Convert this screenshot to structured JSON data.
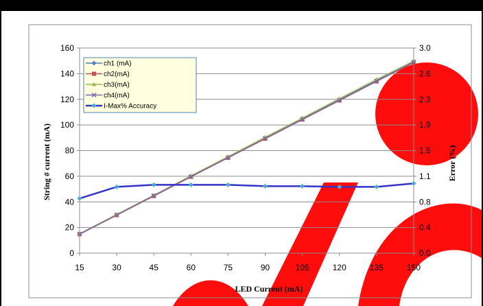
{
  "chart_data": {
    "type": "line",
    "xlabel": "LED Current (mA)",
    "ylabel": "String # current  (mA)",
    "y2label": "Error (%)",
    "x": [
      15,
      30,
      45,
      60,
      75,
      90,
      105,
      120,
      135,
      150
    ],
    "ylim": [
      0,
      160
    ],
    "yticks": [
      0,
      20,
      40,
      60,
      80,
      100,
      120,
      140,
      160
    ],
    "y2ticks": [
      "0.0",
      "0.4",
      "0.8",
      "1.1",
      "1.5",
      "1.9",
      "2.3",
      "2.6",
      "3.0"
    ],
    "y2lim": [
      0,
      3.0
    ],
    "grid": "horizontal",
    "legend_position": "top-left",
    "series": [
      {
        "name": "ch1 (mA)",
        "axis": "left",
        "color": "#4F81BD",
        "marker": "diamond",
        "values": [
          15,
          30,
          45,
          60,
          75,
          90,
          105,
          120,
          135,
          149
        ]
      },
      {
        "name": "ch2(mA)",
        "axis": "left",
        "color": "#C0504D",
        "marker": "square",
        "values": [
          14.8,
          29.7,
          44.6,
          59.6,
          74.4,
          89.3,
          104.2,
          119.1,
          134.0,
          148.8
        ]
      },
      {
        "name": "ch3(mA)",
        "axis": "left",
        "color": "#9BBB59",
        "marker": "triangle",
        "values": [
          15.1,
          30.2,
          45.2,
          60.3,
          75.3,
          90.4,
          105.4,
          120.5,
          135.5,
          149.8
        ]
      },
      {
        "name": "ch4(mA)",
        "axis": "left",
        "color": "#8064A2",
        "marker": "x",
        "values": [
          14.9,
          29.8,
          44.8,
          59.7,
          74.6,
          89.5,
          104.4,
          119.3,
          134.2,
          149.1
        ]
      },
      {
        "name": "I-Max% Accuracy",
        "axis": "right",
        "color": "#3333CC",
        "marker": "diamond",
        "marker_color": "#4BACC6",
        "values": [
          0.8,
          0.97,
          1.0,
          1.0,
          1.0,
          0.98,
          0.98,
          0.97,
          0.97,
          1.02
        ]
      }
    ]
  },
  "watermark": {
    "text": "Obs",
    "color": "#FF0000"
  }
}
